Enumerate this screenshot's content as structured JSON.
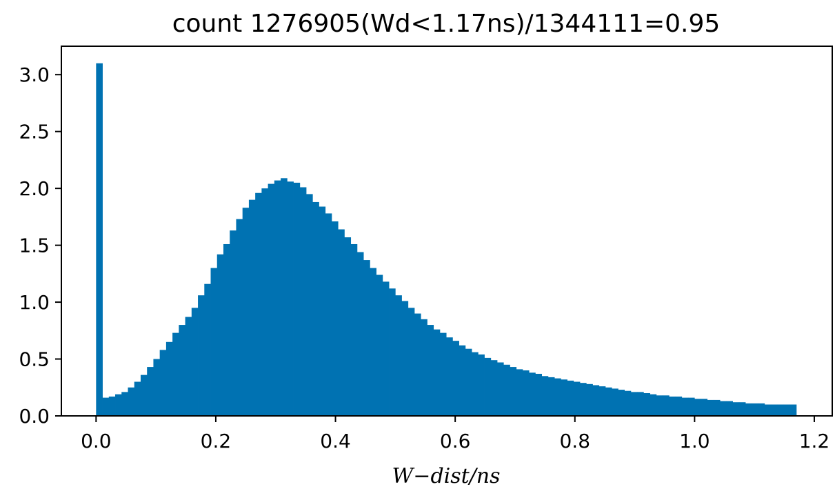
{
  "chart_data": {
    "type": "bar",
    "title": "count 1276905(Wd<1.17ns)/1344111=0.95",
    "xlabel": "W−dist/ns",
    "ylabel": "",
    "xlim": [
      -0.058,
      1.23
    ],
    "ylim": [
      0,
      3.25
    ],
    "xticks": [
      "0.0",
      "0.2",
      "0.4",
      "0.6",
      "0.8",
      "1.0",
      "1.2"
    ],
    "xtick_values": [
      0.0,
      0.2,
      0.4,
      0.6,
      0.8,
      1.0,
      1.2
    ],
    "yticks": [
      "0.0",
      "0.5",
      "1.0",
      "1.5",
      "2.0",
      "2.5",
      "3.0"
    ],
    "ytick_values": [
      0.0,
      0.5,
      1.0,
      1.5,
      2.0,
      2.5,
      3.0
    ],
    "grid": false,
    "bar_color": "#0072b2",
    "bin_start": 0.0,
    "bin_end": 1.17,
    "values": [
      3.1,
      0.16,
      0.17,
      0.19,
      0.21,
      0.25,
      0.3,
      0.36,
      0.43,
      0.5,
      0.58,
      0.65,
      0.73,
      0.8,
      0.87,
      0.95,
      1.06,
      1.16,
      1.3,
      1.42,
      1.51,
      1.63,
      1.73,
      1.83,
      1.9,
      1.96,
      2.0,
      2.04,
      2.07,
      2.09,
      2.06,
      2.05,
      2.01,
      1.95,
      1.88,
      1.84,
      1.78,
      1.71,
      1.64,
      1.57,
      1.51,
      1.44,
      1.37,
      1.3,
      1.24,
      1.18,
      1.12,
      1.06,
      1.01,
      0.95,
      0.9,
      0.85,
      0.8,
      0.76,
      0.73,
      0.69,
      0.66,
      0.62,
      0.59,
      0.56,
      0.54,
      0.51,
      0.49,
      0.47,
      0.45,
      0.43,
      0.41,
      0.4,
      0.38,
      0.37,
      0.35,
      0.34,
      0.33,
      0.32,
      0.31,
      0.3,
      0.29,
      0.28,
      0.27,
      0.26,
      0.25,
      0.24,
      0.23,
      0.22,
      0.21,
      0.21,
      0.2,
      0.19,
      0.18,
      0.18,
      0.17,
      0.17,
      0.16,
      0.16,
      0.15,
      0.15,
      0.14,
      0.14,
      0.13,
      0.13,
      0.12,
      0.12,
      0.11,
      0.11,
      0.11,
      0.1,
      0.1,
      0.1,
      0.1,
      0.1
    ]
  }
}
